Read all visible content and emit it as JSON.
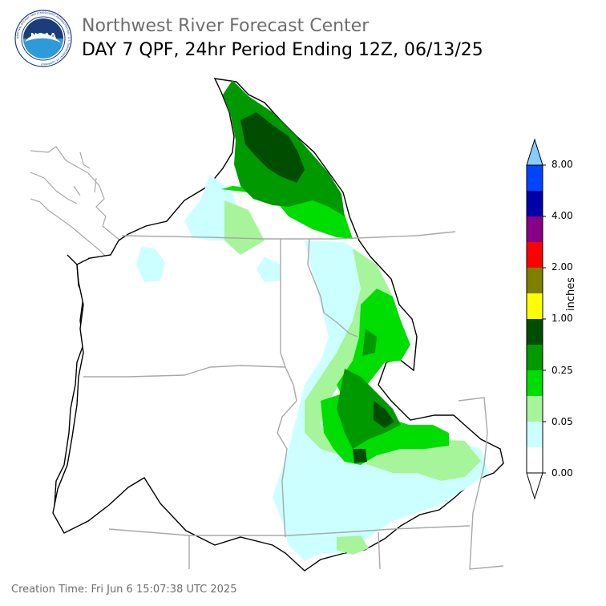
{
  "header": {
    "org_title": "Northwest River Forecast Center",
    "product_title": "DAY 7 QPF, 24hr Period Ending 12Z, 06/13/25"
  },
  "logo": {
    "text": "NOAA",
    "ring_text": "NATIONAL OCEANIC AND ATMOSPHERIC ADMINISTRATION · U.S. DEPARTMENT OF COMMERCE",
    "colors": {
      "dark_blue": "#1b3d7a",
      "light_blue": "#2f9ad8",
      "white": "#ffffff"
    }
  },
  "legend": {
    "unit_label": "inches",
    "tick_labels": [
      "0.00",
      "0.05",
      "0.25",
      "1.00",
      "2.00",
      "4.00",
      "8.00"
    ],
    "bins": [
      {
        "range": "0.00-0.01",
        "color": "#ffffff"
      },
      {
        "range": "0.01-0.05",
        "color": "#ccffff"
      },
      {
        "range": "0.05-0.10",
        "color": "#a6f59a"
      },
      {
        "range": "0.10-0.25",
        "color": "#00dd00"
      },
      {
        "range": "0.25-0.50",
        "color": "#009900"
      },
      {
        "range": "0.50-1.00",
        "color": "#004d00"
      },
      {
        "range": "1.00-1.50",
        "color": "#ffff00"
      },
      {
        "range": "1.50-2.00",
        "color": "#808000"
      },
      {
        "range": "2.00-3.00",
        "color": "#ff0000"
      },
      {
        "range": "3.00-4.00",
        "color": "#880088"
      },
      {
        "range": "4.00-6.00",
        "color": "#0000aa"
      },
      {
        "range": "6.00-8.00",
        "color": "#0044ff"
      }
    ],
    "over_color": "#88ccff",
    "under_color": "#ffffff"
  },
  "map": {
    "region": "Pacific Northwest (Columbia River Basin)",
    "basin_outline_color": "#000000",
    "state_border_color": "#a8a8a8",
    "coast_color": "#000000"
  },
  "footer": {
    "label": "Creation Time:",
    "value": "Fri Jun 6 15:07:38 UTC 2025"
  }
}
